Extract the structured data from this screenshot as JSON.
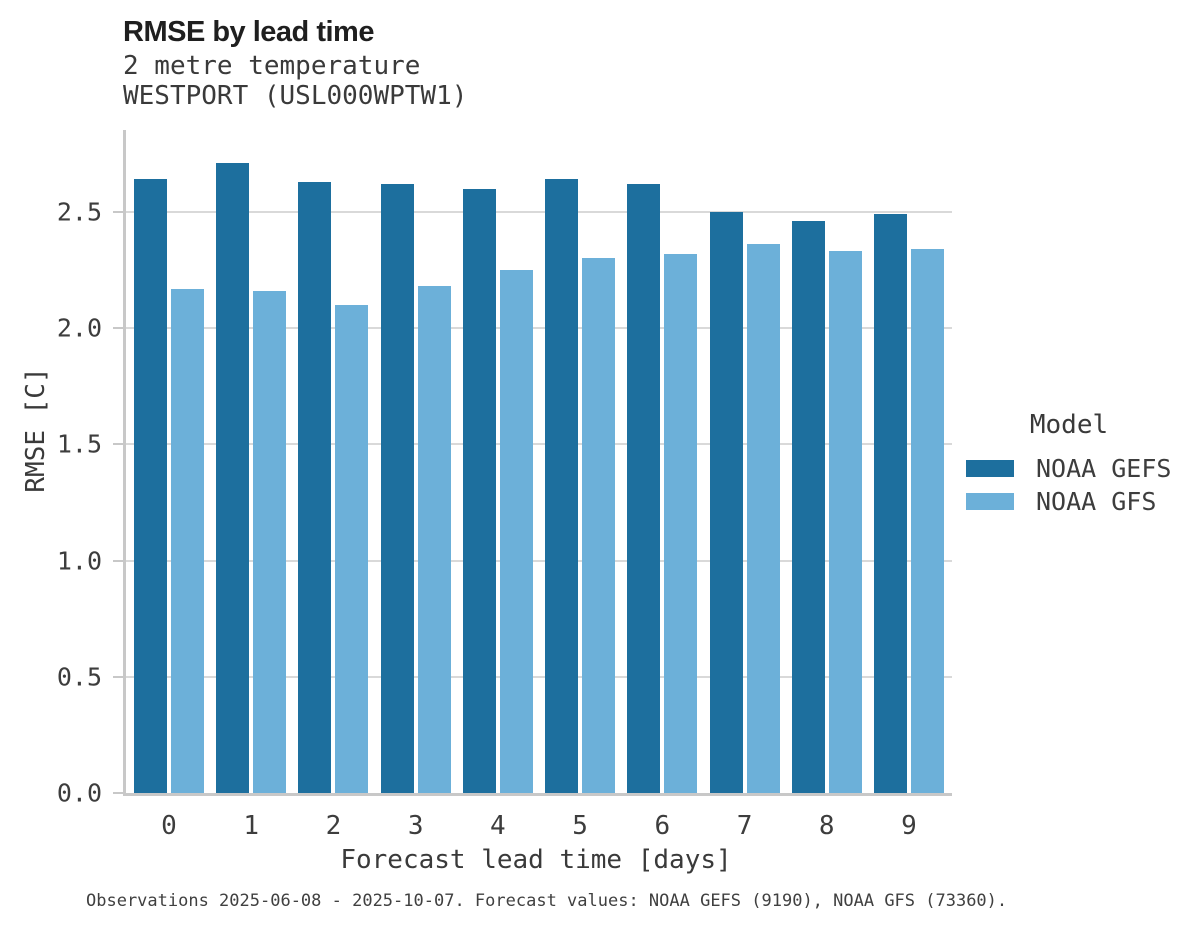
{
  "header": {
    "title": "RMSE by lead time"
  },
  "footer": {
    "text": "Observations 2025-06-08 - 2025-10-07. Forecast values: NOAA GEFS (9190), NOAA GFS (73360)."
  },
  "colors": {
    "gefs_bar": "#1d6f9e",
    "gfs_bar": "#6cb0d9",
    "gridline": "#d9d9d9",
    "axis_line": "#c8c8c8",
    "title_text": "#1f1f1f",
    "body_text": "#3d3d3d"
  },
  "chart_data": {
    "type": "bar",
    "title": "RMSE by lead time",
    "subtitle": [
      "2 metre temperature",
      "WESTPORT (USL000WPTW1)"
    ],
    "categories": [
      "0",
      "1",
      "2",
      "3",
      "4",
      "5",
      "6",
      "7",
      "8",
      "9"
    ],
    "series": [
      {
        "name": "NOAA GEFS",
        "color": "#1d6f9e",
        "values": [
          2.64,
          2.71,
          2.63,
          2.62,
          2.6,
          2.64,
          2.62,
          2.5,
          2.46,
          2.49
        ]
      },
      {
        "name": "NOAA GFS",
        "color": "#6cb0d9",
        "values": [
          2.17,
          2.16,
          2.1,
          2.18,
          2.25,
          2.3,
          2.32,
          2.36,
          2.33,
          2.34
        ]
      }
    ],
    "xlabel": "Forecast lead time [days]",
    "ylabel": "RMSE [C]",
    "ylim": [
      0,
      2.852
    ],
    "yticks": [
      0.0,
      0.5,
      1.0,
      1.5,
      2.0,
      2.5
    ],
    "grid": "horizontal-major-only",
    "legend_title": "Model",
    "legend_position": "right"
  }
}
